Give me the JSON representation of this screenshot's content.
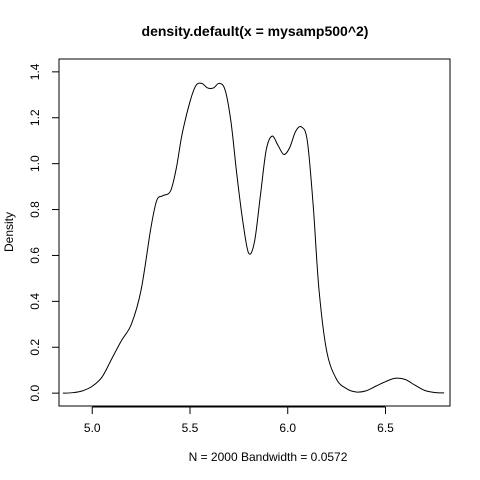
{
  "chart_data": {
    "type": "line",
    "title": "density.default(x = mysamp500^2)",
    "xlabel": "N = 2000   Bandwidth = 0.0572",
    "ylabel": "Density",
    "xlim": [
      4.83,
      6.83
    ],
    "ylim": [
      -0.056,
      1.456
    ],
    "xticks": [
      5.0,
      5.5,
      6.0,
      6.5
    ],
    "xtick_labels": [
      "5.0",
      "5.5",
      "6.0",
      "6.5"
    ],
    "yticks": [
      0.0,
      0.2,
      0.4,
      0.6,
      0.8,
      1.0,
      1.2,
      1.4
    ],
    "ytick_labels": [
      "0.0",
      "0.2",
      "0.4",
      "0.6",
      "0.8",
      "1.0",
      "1.2",
      "1.4"
    ],
    "grid": false,
    "series": [
      {
        "x": [
          4.85,
          4.9,
          4.95,
          5.0,
          5.05,
          5.1,
          5.15,
          5.2,
          5.25,
          5.3,
          5.33,
          5.36,
          5.4,
          5.43,
          5.46,
          5.5,
          5.53,
          5.56,
          5.59,
          5.62,
          5.65,
          5.68,
          5.71,
          5.74,
          5.77,
          5.8,
          5.83,
          5.86,
          5.89,
          5.92,
          5.95,
          5.98,
          6.01,
          6.04,
          6.07,
          6.1,
          6.13,
          6.16,
          6.2,
          6.25,
          6.3,
          6.35,
          6.4,
          6.45,
          6.5,
          6.55,
          6.6,
          6.65,
          6.7,
          6.75,
          6.8
        ],
        "y": [
          0.0,
          0.002,
          0.01,
          0.03,
          0.07,
          0.15,
          0.23,
          0.3,
          0.45,
          0.72,
          0.84,
          0.86,
          0.88,
          0.98,
          1.13,
          1.27,
          1.34,
          1.35,
          1.33,
          1.33,
          1.35,
          1.32,
          1.18,
          0.95,
          0.75,
          0.61,
          0.66,
          0.86,
          1.06,
          1.12,
          1.08,
          1.04,
          1.07,
          1.14,
          1.16,
          1.1,
          0.82,
          0.45,
          0.18,
          0.06,
          0.02,
          0.005,
          0.01,
          0.03,
          0.05,
          0.065,
          0.06,
          0.035,
          0.012,
          0.003,
          0.001
        ]
      }
    ]
  }
}
